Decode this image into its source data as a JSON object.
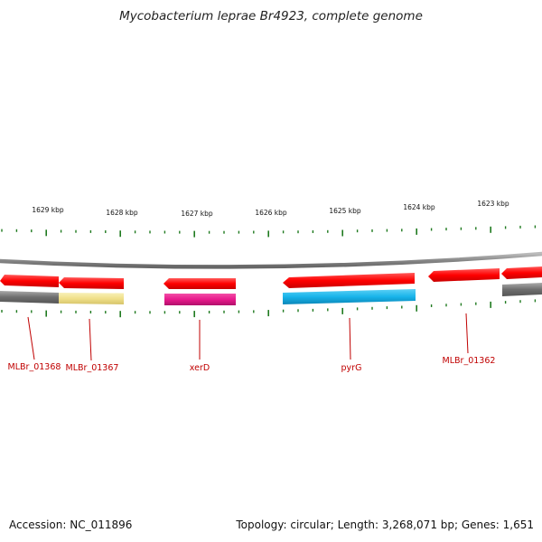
{
  "title": "Mycobacterium leprae Br4923, complete genome",
  "accession": "Accession: NC_011896",
  "summary": "Topology: circular; Length: 3,268,071 bp; Genes: 1,651",
  "scale_labels": [
    "1629 kbp",
    "1628 kbp",
    "1627 kbp",
    "1626 kbp",
    "1625 kbp",
    "1624 kbp",
    "1623 kbp"
  ],
  "genes": [
    {
      "label": "MLBr_01368",
      "fill": "#9a9a9a"
    },
    {
      "label": "MLBr_01367",
      "fill": "#f3e69a"
    },
    {
      "label": "xerD",
      "fill": "#e8198c"
    },
    {
      "label": "pyrG",
      "fill": "#18b4ea"
    },
    {
      "label": "MLBr_01362",
      "fill": "#9a9a9a"
    }
  ],
  "colors": {
    "cds_strand": "#ff0000",
    "backbone": "#888888",
    "ticks": "#1f7a1f",
    "gene_label": "#c00000"
  }
}
